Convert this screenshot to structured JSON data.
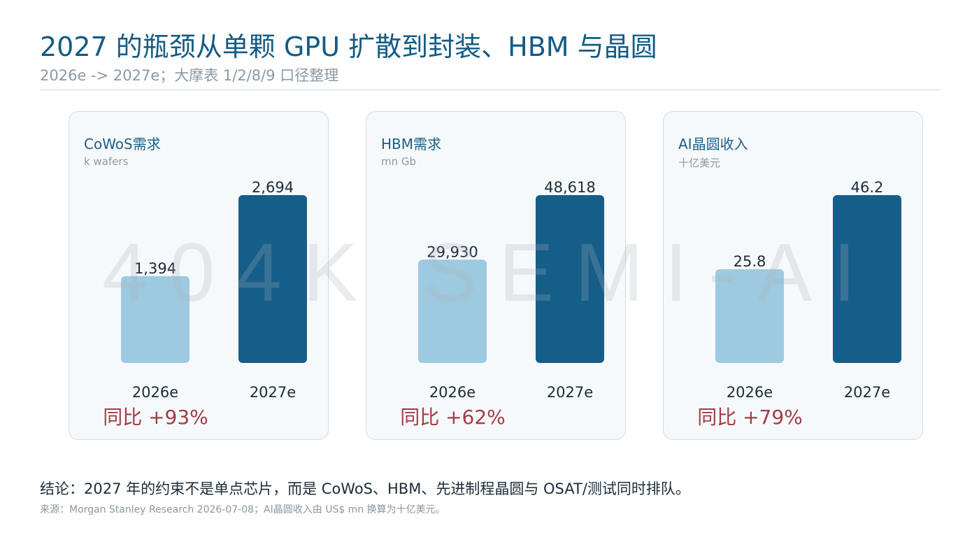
{
  "header": {
    "title": "2027 的瓶颈从单颗 GPU 扩散到封装、HBM 与晶圆",
    "subtitle": "2026e -> 2027e；大摩表 1/2/8/9 口径整理"
  },
  "watermark": "404K SEMI-AI",
  "colors": {
    "bar_2026": "#9ecae1",
    "bar_2027": "#155e8a",
    "yoy": "#a33c45",
    "title": "#135b85"
  },
  "chart_data": [
    {
      "type": "bar",
      "title": "CoWoS需求",
      "unit": "k wafers",
      "categories": [
        "2026e",
        "2027e"
      ],
      "values": [
        1394,
        2694
      ],
      "value_labels": [
        "1,394",
        "2,694"
      ],
      "yoy": "同比 +93%"
    },
    {
      "type": "bar",
      "title": "HBM需求",
      "unit": "mn Gb",
      "categories": [
        "2026e",
        "2027e"
      ],
      "values": [
        29930,
        48618
      ],
      "value_labels": [
        "29,930",
        "48,618"
      ],
      "yoy": "同比 +62%"
    },
    {
      "type": "bar",
      "title": "AI晶圆收入",
      "unit": "十亿美元",
      "categories": [
        "2026e",
        "2027e"
      ],
      "values": [
        25.8,
        46.2
      ],
      "value_labels": [
        "25.8",
        "46.2"
      ],
      "yoy": "同比 +79%"
    }
  ],
  "footer": {
    "conclusion": "结论：2027 年的约束不是单点芯片，而是 CoWoS、HBM、先进制程晶圆与 OSAT/测试同时排队。",
    "source": "来源：Morgan Stanley Research 2026-07-08；AI晶圆收入由 US$ mn 换算为十亿美元。"
  }
}
